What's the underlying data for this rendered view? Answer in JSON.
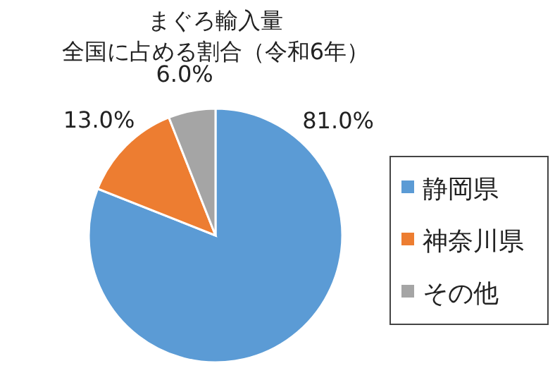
{
  "chart_data": {
    "type": "pie",
    "title": "まぐろ輸入量",
    "subtitle": "全国に占める割合（令和6年）",
    "categories": [
      "静岡県",
      "神奈川県",
      "その他"
    ],
    "values": [
      81.0,
      13.0,
      6.0
    ],
    "colors": [
      "#5b9bd5",
      "#ed7d31",
      "#a5a5a5"
    ],
    "value_labels": [
      "81.0%",
      "13.0%",
      "6.0%"
    ],
    "legend": "right"
  }
}
